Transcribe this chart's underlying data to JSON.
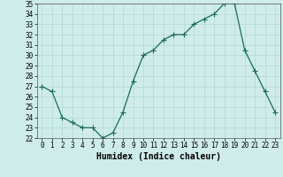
{
  "x": [
    0,
    1,
    2,
    3,
    4,
    5,
    6,
    7,
    8,
    9,
    10,
    11,
    12,
    13,
    14,
    15,
    16,
    17,
    18,
    19,
    20,
    21,
    22,
    23
  ],
  "y": [
    27,
    26.5,
    24,
    23.5,
    23,
    23,
    22,
    22.5,
    24.5,
    27.5,
    30,
    30.5,
    31.5,
    32,
    32,
    33,
    33.5,
    34,
    35,
    35,
    30.5,
    28.5,
    26.5,
    24.5
  ],
  "line_color": "#1a6b5a",
  "marker_color": "#1a6b5a",
  "bg_color": "#ceecea",
  "grid_color": "#b2d8d4",
  "xlabel": "Humidex (Indice chaleur)",
  "ylim": [
    22,
    35
  ],
  "xlim": [
    -0.5,
    23.5
  ],
  "yticks": [
    22,
    23,
    24,
    25,
    26,
    27,
    28,
    29,
    30,
    31,
    32,
    33,
    34,
    35
  ],
  "xticks": [
    0,
    1,
    2,
    3,
    4,
    5,
    6,
    7,
    8,
    9,
    10,
    11,
    12,
    13,
    14,
    15,
    16,
    17,
    18,
    19,
    20,
    21,
    22,
    23
  ],
  "tick_fontsize": 5.5,
  "xlabel_fontsize": 7,
  "marker_size": 2.5,
  "line_width": 0.9
}
